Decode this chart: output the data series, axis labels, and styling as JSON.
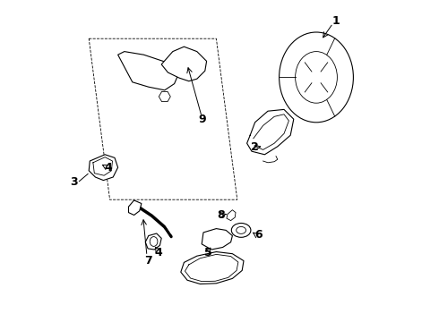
{
  "background_color": "#ffffff",
  "fig_width": 4.9,
  "fig_height": 3.6,
  "dpi": 100,
  "line_color": "#000000",
  "label_fontsize": 9,
  "label_fontweight": "bold"
}
